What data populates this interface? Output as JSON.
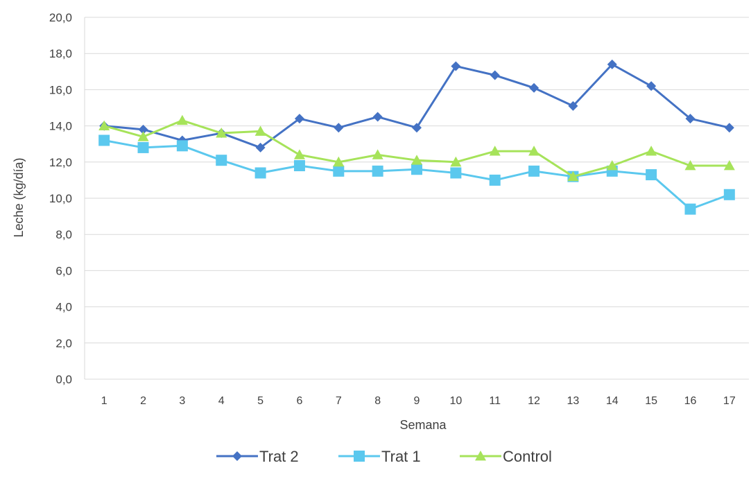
{
  "chart_data": {
    "type": "line",
    "title": "",
    "xlabel": "Semana",
    "ylabel": "Leche (kg/día)",
    "x": [
      "1",
      "2",
      "3",
      "4",
      "5",
      "6",
      "7",
      "8",
      "9",
      "10",
      "11",
      "12",
      "13",
      "14",
      "15",
      "16",
      "17"
    ],
    "yticks": [
      "0,0",
      "2,0",
      "4,0",
      "6,0",
      "8,0",
      "10,0",
      "12,0",
      "14,0",
      "16,0",
      "18,0",
      "20,0"
    ],
    "ylim": [
      0,
      20
    ],
    "grid": "horizontal",
    "legend_position": "bottom",
    "series": [
      {
        "name": "Trat 2",
        "color": "#4472C4",
        "marker": "diamond",
        "values": [
          14.0,
          13.8,
          13.2,
          13.6,
          12.8,
          14.4,
          13.9,
          14.5,
          13.9,
          17.3,
          16.8,
          16.1,
          15.1,
          17.4,
          16.2,
          14.4,
          13.9
        ]
      },
      {
        "name": "Trat 1",
        "color": "#5BC8EE",
        "marker": "square",
        "values": [
          13.2,
          12.8,
          12.9,
          12.1,
          11.4,
          11.8,
          11.5,
          11.5,
          11.6,
          11.4,
          11.0,
          11.5,
          11.2,
          11.5,
          11.3,
          9.4,
          10.2
        ]
      },
      {
        "name": "Control",
        "color": "#A6E35A",
        "marker": "triangle",
        "values": [
          14.0,
          13.4,
          14.3,
          13.6,
          13.7,
          12.4,
          12.0,
          12.4,
          12.1,
          12.0,
          12.6,
          12.6,
          11.2,
          11.8,
          12.6,
          11.8,
          11.8
        ]
      }
    ]
  }
}
